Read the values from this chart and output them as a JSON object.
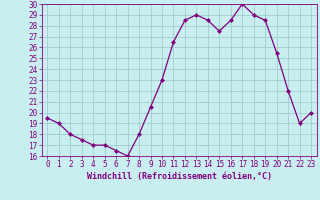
{
  "x": [
    0,
    1,
    2,
    3,
    4,
    5,
    6,
    7,
    8,
    9,
    10,
    11,
    12,
    13,
    14,
    15,
    16,
    17,
    18,
    19,
    20,
    21,
    22,
    23
  ],
  "y": [
    19.5,
    19.0,
    18.0,
    17.5,
    17.0,
    17.0,
    16.5,
    16.0,
    18.0,
    20.5,
    23.0,
    26.5,
    28.5,
    29.0,
    28.5,
    27.5,
    28.5,
    30.0,
    29.0,
    28.5,
    25.5,
    22.0,
    19.0,
    20.0
  ],
  "line_color": "#800080",
  "marker_color": "#800080",
  "bg_color": "#c8eef0",
  "grid_color": "#a0ccd0",
  "xlabel": "Windchill (Refroidissement éolien,°C)",
  "ylabel": "",
  "ylim": [
    16,
    30
  ],
  "xlim": [
    -0.5,
    23.5
  ],
  "yticks": [
    16,
    17,
    18,
    19,
    20,
    21,
    22,
    23,
    24,
    25,
    26,
    27,
    28,
    29,
    30
  ],
  "xticks": [
    0,
    1,
    2,
    3,
    4,
    5,
    6,
    7,
    8,
    9,
    10,
    11,
    12,
    13,
    14,
    15,
    16,
    17,
    18,
    19,
    20,
    21,
    22,
    23
  ],
  "tick_label_color": "#800080",
  "xlabel_color": "#800080",
  "axis_color": "#800080",
  "tick_fontsize": 5.5,
  "xlabel_fontsize": 6.0
}
